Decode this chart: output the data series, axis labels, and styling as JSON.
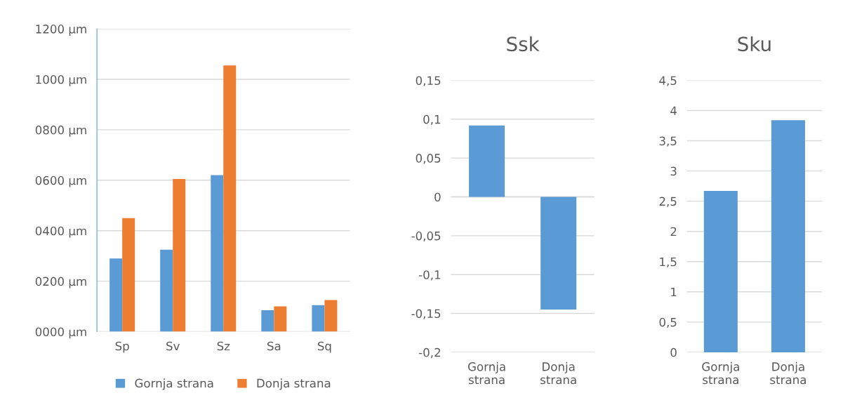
{
  "chart_data": [
    {
      "type": "bar",
      "categories": [
        "Sp",
        "Sv",
        "Sz",
        "Sa",
        "Sq"
      ],
      "series": [
        {
          "name": "Gornja strana",
          "color": "#5b9bd5",
          "values": [
            290,
            325,
            620,
            85,
            105
          ]
        },
        {
          "name": "Donja strana",
          "color": "#ed7d31",
          "values": [
            450,
            605,
            1055,
            100,
            125
          ]
        }
      ],
      "ylim": [
        0,
        1200
      ],
      "yticks": [
        {
          "value": 0,
          "label": "0000 µm"
        },
        {
          "value": 200,
          "label": "0200 µm"
        },
        {
          "value": 400,
          "label": "0400 µm"
        },
        {
          "value": 600,
          "label": "0600 µm"
        },
        {
          "value": 800,
          "label": "0800 µm"
        },
        {
          "value": 1000,
          "label": "1000 µm"
        },
        {
          "value": 1200,
          "label": "1200 µm"
        }
      ],
      "grid": "y",
      "legend": "bottom"
    },
    {
      "type": "bar",
      "title": "Ssk",
      "categories": [
        "Gornja\nstrana",
        "Donja\nstrana"
      ],
      "series": [
        {
          "color": "#5b9bd5",
          "values": [
            0.092,
            -0.145
          ]
        }
      ],
      "ylim": [
        -0.2,
        0.15
      ],
      "yticks": [
        {
          "value": -0.2,
          "label": "-0,2"
        },
        {
          "value": -0.15,
          "label": "-0,15"
        },
        {
          "value": -0.1,
          "label": "-0,1"
        },
        {
          "value": -0.05,
          "label": "-0,05"
        },
        0,
        {
          "value": 0.05,
          "label": "0,05"
        },
        {
          "value": 0.1,
          "label": "0,1"
        },
        {
          "value": 0.15,
          "label": "0,15"
        }
      ],
      "grid": "y"
    },
    {
      "type": "bar",
      "title": "Sku",
      "categories": [
        "Gornja\nstrana",
        "Donja\nstrana"
      ],
      "series": [
        {
          "color": "#5b9bd5",
          "values": [
            2.67,
            3.84
          ]
        }
      ],
      "ylim": [
        0,
        4.5
      ],
      "yticks": [
        0,
        {
          "value": 0.5,
          "label": "0,5"
        },
        1,
        {
          "value": 1.5,
          "label": "1,5"
        },
        2,
        {
          "value": 2.5,
          "label": "2,5"
        },
        3,
        {
          "value": 3.5,
          "label": "3,5"
        },
        4,
        {
          "value": 4.5,
          "label": "4,5"
        }
      ],
      "grid": "y"
    }
  ]
}
